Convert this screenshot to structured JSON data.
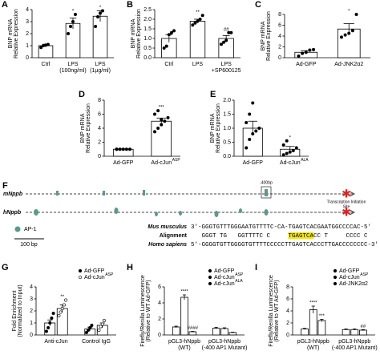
{
  "chart_data": [
    {
      "type": "bar",
      "panel": "A",
      "ylabel": [
        "BNP mRNA",
        "Relative Expression"
      ],
      "ylim": [
        0,
        4
      ],
      "yticks": [
        0,
        1,
        2,
        3,
        4
      ],
      "categories": [
        [
          "Ctrl"
        ],
        [
          "LPS",
          "(100ng/ml)"
        ],
        [
          "LPS",
          "(1μg/ml)"
        ]
      ],
      "series": [
        {
          "color": "#ffffff",
          "values": [
            1.0,
            2.85,
            3.45
          ],
          "errors": [
            0.12,
            0.45,
            0.45
          ],
          "points": [
            [
              0.85,
              1.0,
              1.05,
              1.1
            ],
            [
              2.0,
              2.6,
              3.0,
              3.6
            ],
            [
              2.6,
              3.4,
              3.7,
              3.9
            ]
          ],
          "stars": [
            null,
            "*",
            "*"
          ]
        }
      ]
    },
    {
      "type": "bar",
      "panel": "B",
      "ylabel": [
        "BNP mRNA",
        "Relative Expression"
      ],
      "ylim": [
        0,
        2.5
      ],
      "yticks": [
        {
          "value": 0,
          "label": "0.0"
        },
        {
          "value": 0.5,
          "label": "0.5"
        },
        {
          "value": 1,
          "label": "1.0"
        },
        {
          "value": 1.5,
          "label": "1.5"
        },
        {
          "value": 2,
          "label": "2.0"
        },
        {
          "value": 2.5,
          "label": "2.5"
        }
      ],
      "categories": [
        [
          "Ctrl"
        ],
        [
          "LPS"
        ],
        [
          "LPS",
          "+SP600125"
        ]
      ],
      "series": [
        {
          "color": "#ffffff",
          "values": [
            1.0,
            1.9,
            1.0
          ],
          "errors": [
            0.2,
            0.1,
            0.15
          ],
          "points": [
            [
              0.5,
              0.6,
              1.2,
              1.3,
              1.4
            ],
            [
              1.7,
              1.8,
              1.9,
              2.0,
              2.2
            ],
            [
              0.7,
              0.8,
              0.9,
              1.3,
              1.3
            ]
          ],
          "stars": [
            null,
            "**",
            "##"
          ]
        }
      ]
    },
    {
      "type": "bar",
      "panel": "C",
      "ylabel": [
        "BNP mRNA",
        "Relative Expression"
      ],
      "ylim": [
        0,
        8
      ],
      "yticks": [
        0,
        2,
        4,
        6,
        8
      ],
      "categories": [
        [
          "Ad-GFP"
        ],
        [
          "Ad-JNK2α2"
        ]
      ],
      "series": [
        {
          "color": "#ffffff",
          "values": [
            1.0,
            5.3
          ],
          "errors": [
            0.3,
            1.0
          ],
          "points": [
            [
              0.3,
              0.8,
              1.0,
              1.4,
              1.5
            ],
            [
              3.8,
              4.2,
              4.5,
              5.0,
              8.0
            ]
          ],
          "stars": [
            null,
            "*"
          ]
        }
      ]
    },
    {
      "type": "bar",
      "panel": "D",
      "ylabel": [
        "BNP mRNA",
        "Relative Expression"
      ],
      "ylim": [
        0,
        8
      ],
      "yticks": [
        0,
        2,
        4,
        6,
        8
      ],
      "categories": [
        [
          "Ad-GFP"
        ],
        [
          "Ad-cJun"
        ]
      ],
      "category_superscripts": [
        null,
        "ASP"
      ],
      "series": [
        {
          "color": "#ffffff",
          "values": [
            1.0,
            5.0
          ],
          "errors": [
            0.05,
            0.45
          ],
          "points": [
            [
              1.0,
              1.0,
              1.0,
              1.0,
              1.0,
              1.0
            ],
            [
              3.5,
              4.0,
              4.5,
              5.0,
              5.5,
              6.0,
              6.5,
              5.2
            ]
          ],
          "stars": [
            null,
            "***"
          ]
        }
      ]
    },
    {
      "type": "bar",
      "panel": "E",
      "ylabel": [
        "BNP mRNA",
        "Relative Expression"
      ],
      "ylim": [
        0,
        2
      ],
      "yticks": [
        {
          "value": 0,
          "label": "0.0"
        },
        {
          "value": 0.5,
          "label": "0.5"
        },
        {
          "value": 1,
          "label": "1.0"
        },
        {
          "value": 1.5,
          "label": "1.5"
        },
        {
          "value": 2,
          "label": "2.0"
        }
      ],
      "categories": [
        [
          "Ad-GFP"
        ],
        [
          "Ad-cJun"
        ]
      ],
      "category_superscripts": [
        null,
        "ALA"
      ],
      "series": [
        {
          "color": "#ffffff",
          "values": [
            1.0,
            0.25
          ],
          "errors": [
            0.25,
            0.1
          ],
          "points": [
            [
              0.3,
              0.6,
              0.8,
              0.9,
              1.0,
              1.2,
              1.5,
              1.9
            ],
            [
              0.05,
              0.1,
              0.15,
              0.2,
              0.3,
              0.4,
              0.55
            ]
          ],
          "stars": [
            null,
            "*"
          ]
        }
      ]
    },
    {
      "type": "bar",
      "panel": "G",
      "ylabel": [
        "Fold Enrichment",
        "(Normalized to Input)"
      ],
      "ylim": [
        0,
        4
      ],
      "yticks": [
        0,
        1,
        2,
        3,
        4
      ],
      "categories": [
        [
          "Anti-cJun"
        ],
        [
          "Control IgG"
        ]
      ],
      "series": [
        {
          "name": "Ad-GFP",
          "color": "#ffffff",
          "marker": "#000000",
          "values": [
            1.0,
            0.5
          ],
          "errors": [
            0.25,
            0.15
          ],
          "points": [
            [
              0.3,
              0.6,
              1.0,
              1.4,
              1.8
            ],
            [
              0.2,
              0.4,
              0.6,
              0.8
            ]
          ],
          "stars": [
            null,
            null
          ]
        },
        {
          "name": "Ad-cJun",
          "name_sup": "ASP",
          "color": "#ffffff",
          "marker": "#ffffff",
          "values": [
            2.2,
            0.8
          ],
          "errors": [
            0.3,
            0.2
          ],
          "points": [
            [
              1.6,
              1.9,
              2.2,
              2.5,
              2.9
            ],
            [
              0.4,
              0.7,
              0.9,
              1.2
            ]
          ],
          "stars": [
            "**",
            null
          ]
        }
      ]
    },
    {
      "type": "bar",
      "panel": "H",
      "ylabel": [
        "Firefly/Renilla Luminescence",
        "(Relative to WT Ad-GFP)"
      ],
      "ylim": [
        0,
        6
      ],
      "yticks": [
        0,
        2,
        4,
        6
      ],
      "categories": [
        [
          "pGL3-hNppb",
          "(WT)"
        ],
        [
          "pGL3-hNppb",
          "(-400 AP1 Mutant)"
        ]
      ],
      "series": [
        {
          "name": "Ad-GFP",
          "color": "#ffffff",
          "marker": "#000000",
          "values": [
            1.0,
            0.85
          ],
          "errors": [
            0.1,
            0.1
          ],
          "stars": [
            null,
            null
          ]
        },
        {
          "name": "Ad-cJun",
          "name_sup": "ASP",
          "color": "#ffffff",
          "marker": "#000000",
          "values": [
            4.7,
            0.8
          ],
          "errors": [
            0.3,
            0.1
          ],
          "stars": [
            "****",
            null
          ]
        },
        {
          "name": "Ad-cJun",
          "name_sup": "ALA",
          "color": "#ffffff",
          "marker": "#000000",
          "values": [
            0.4,
            0.3
          ],
          "errors": [
            0.05,
            0.05
          ],
          "stars": [
            "####",
            null
          ]
        }
      ]
    },
    {
      "type": "bar",
      "panel": "I",
      "ylabel": [
        "Firefly/Renilla Luminescence",
        "(Relative to WT Ad-GFP)"
      ],
      "ylim": [
        0,
        8
      ],
      "yticks": [
        0,
        2,
        4,
        6,
        8
      ],
      "categories": [
        [
          "pGL3-hNppb",
          "(WT)"
        ],
        [
          "pGL3-hNppb",
          "(-400 AP1 Mutant)"
        ]
      ],
      "series": [
        {
          "name": "Ad-GFP",
          "color": "#ffffff",
          "marker": "#000000",
          "values": [
            1.0,
            0.9
          ],
          "errors": [
            0.1,
            0.1
          ],
          "stars": [
            null,
            null
          ]
        },
        {
          "name": "Ad-cJun",
          "name_sup": "ASP",
          "color": "#ffffff",
          "marker": "#000000",
          "values": [
            4.2,
            0.9
          ],
          "errors": [
            0.6,
            0.1
          ],
          "stars": [
            "****",
            null
          ]
        },
        {
          "name": "Ad-JNK2α2",
          "color": "#ffffff",
          "marker": "#000000",
          "values": [
            2.4,
            0.8
          ],
          "errors": [
            0.2,
            0.1
          ],
          "stars": [
            "***",
            "##"
          ]
        }
      ]
    }
  ],
  "diagram": {
    "panel": "F",
    "mouse": "mNppb",
    "human": "hNppb",
    "position": "-400bp",
    "tss": [
      "Transcription Initiation",
      "Site"
    ],
    "legend": "AP-1",
    "scale": "100 bp",
    "species1": "Mus musculus",
    "alignment_label": "Alignment",
    "species2": "Homo sapiens",
    "seq1": "3'-GGGTGTTTGGGAATGTTTTC-CA-TGAGTCACGAATGGCCCCAC-5'",
    "alignment": [
      "   GGGT TG   GGTTTTC C     ",
      "TGAGTCA",
      "CC T     CCCC C"
    ],
    "seq2": "5'-GGGGTGTTGGGGTGTTTTCCCCCTTGAGTCACCCTTGACCCCCCCC-3'"
  }
}
